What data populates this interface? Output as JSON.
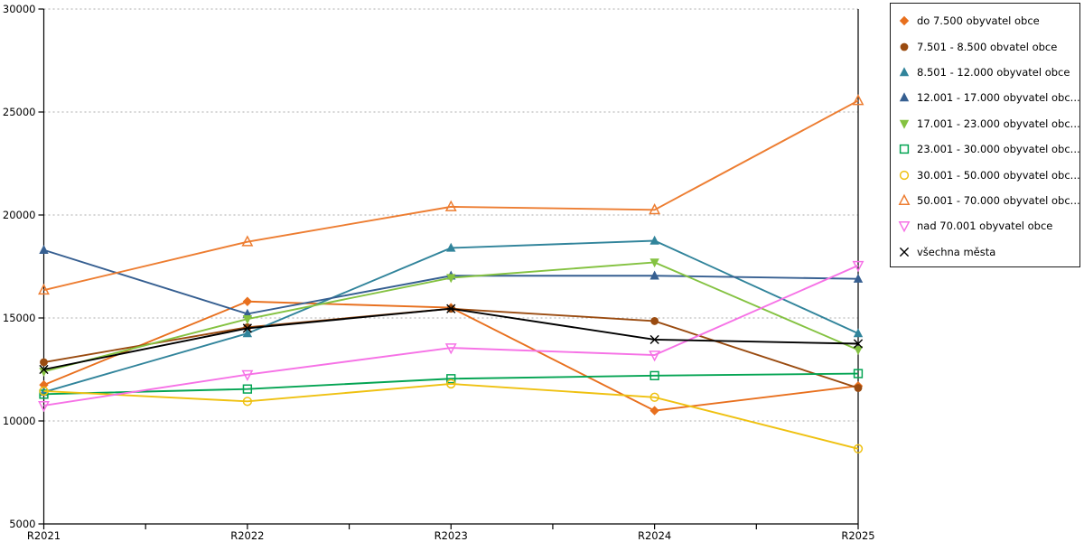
{
  "chart_data": {
    "type": "line",
    "title": "",
    "xlabel": "",
    "ylabel": "",
    "x_categories": [
      "R2021",
      "R2022",
      "R2023",
      "R2024",
      "R2025"
    ],
    "y_axis": {
      "min": 5000,
      "max": 30000,
      "tick_step": 5000,
      "tick_labels": [
        "5000",
        "10000",
        "15000",
        "20000",
        "25000",
        "30000"
      ]
    },
    "grid": {
      "horizontal": "dotted",
      "vertical": "none"
    },
    "legend_position": "right",
    "series": [
      {
        "name": "do 7.500 obyvatel obce",
        "color": "#E8701E",
        "shape": "diamond",
        "style": "filled",
        "values": [
          11750,
          15800,
          15500,
          10500,
          11700
        ]
      },
      {
        "name": "7.501 - 8.500 obvatel obce",
        "color": "#9A4B10",
        "shape": "circle",
        "style": "filled",
        "values": [
          12850,
          14550,
          15450,
          14850,
          11600
        ]
      },
      {
        "name": "8.501 - 12.000 obyvatel obce",
        "color": "#31849B",
        "shape": "triangle-up",
        "style": "filled",
        "values": [
          11400,
          14250,
          18400,
          18750,
          14250
        ]
      },
      {
        "name": "12.001 - 17.000 obyvatel obc...",
        "color": "#365F91",
        "shape": "triangle-up",
        "style": "filled",
        "values": [
          18300,
          15200,
          17050,
          17050,
          16900
        ]
      },
      {
        "name": "17.001 - 23.000 obyvatel obc...",
        "color": "#84C241",
        "shape": "triangle-down",
        "style": "filled",
        "values": [
          12400,
          14950,
          16950,
          17700,
          13450
        ]
      },
      {
        "name": "23.001 - 30.000 obyvatel obc...",
        "color": "#04A453",
        "shape": "square",
        "style": "open",
        "values": [
          11300,
          11550,
          12050,
          12200,
          12300
        ]
      },
      {
        "name": "30.001 - 50.000 obyvatel obc...",
        "color": "#EFC111",
        "shape": "circle",
        "style": "open",
        "values": [
          11450,
          10950,
          11800,
          11150,
          8650
        ]
      },
      {
        "name": "50.001 - 70.000 obyvatel obc...",
        "color": "#ED7D31",
        "shape": "triangle-up",
        "style": "open",
        "values": [
          16350,
          18700,
          20400,
          20250,
          25550
        ]
      },
      {
        "name": "nad 70.001 obyvatel obce",
        "color": "#F672E6",
        "shape": "triangle-down",
        "style": "open",
        "values": [
          10750,
          12250,
          13550,
          13200,
          17550
        ]
      },
      {
        "name": "všechna města",
        "color": "#000000",
        "shape": "x",
        "style": "open",
        "values": [
          12500,
          14500,
          15450,
          13950,
          13750
        ]
      }
    ]
  }
}
